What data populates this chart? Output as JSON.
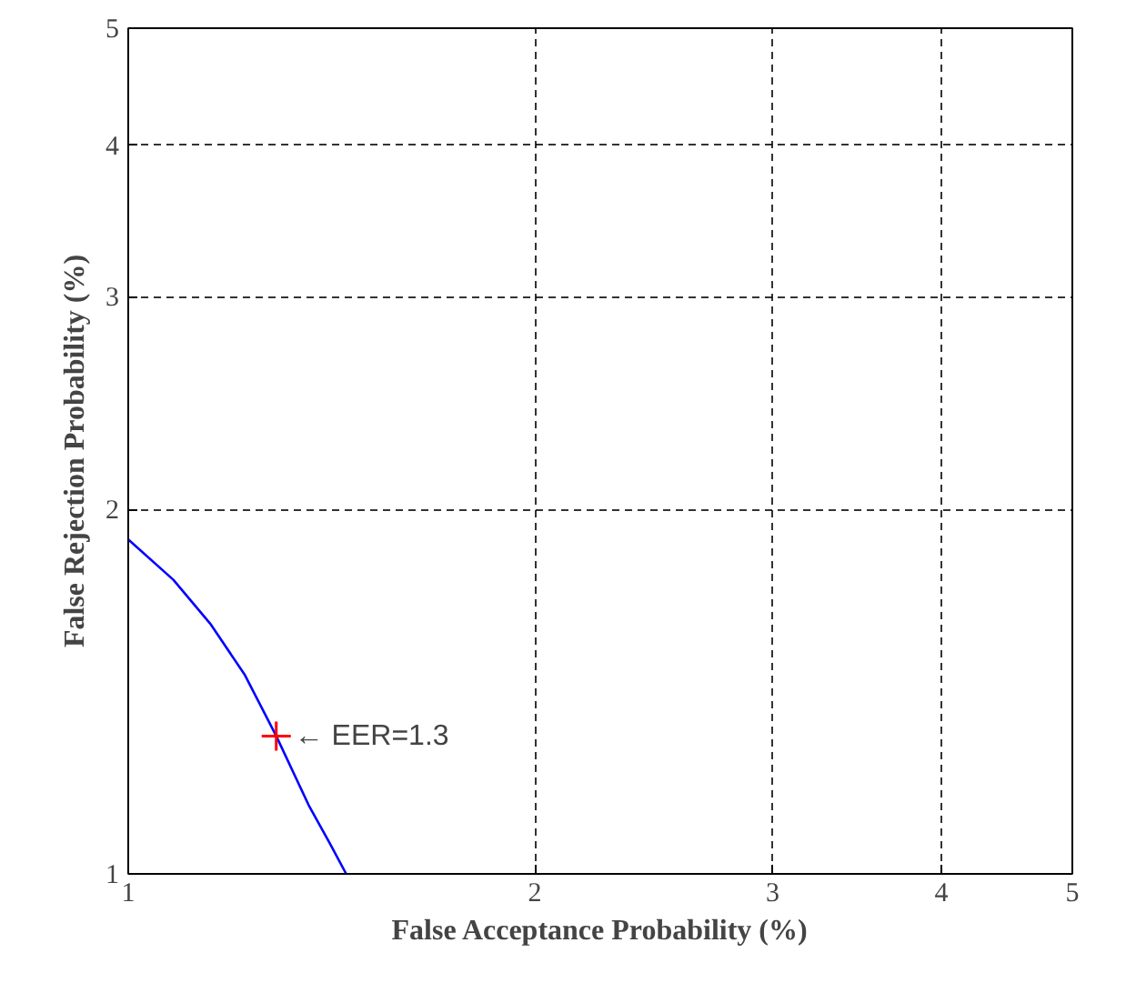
{
  "chart_data": {
    "type": "line",
    "xlabel": "False Acceptance Probability (%)",
    "ylabel": "False Rejection Probability (%)",
    "log": "xy",
    "xlim": [
      1,
      5
    ],
    "ylim": [
      1,
      5
    ],
    "xticks": [
      1,
      2,
      3,
      4,
      5
    ],
    "yticks": [
      1,
      2,
      3,
      4,
      5
    ],
    "grid": true,
    "series": [
      {
        "color": "#0000ff",
        "line_style": "solid",
        "marker": "none",
        "x": [
          1,
          1.08,
          1.15,
          1.22,
          1.287,
          1.36,
          1.41,
          1.45
        ],
        "values": [
          1.89,
          1.75,
          1.61,
          1.46,
          1.3,
          1.14,
          1.06,
          1
        ]
      },
      {
        "type": "scatter",
        "color": "#ff0000",
        "marker": "cross",
        "x": [
          1.287
        ],
        "values": [
          1.3
        ]
      }
    ],
    "annotations": [
      {
        "text": "← EER=1.3",
        "x": 1.287,
        "y": 1.3
      }
    ]
  }
}
